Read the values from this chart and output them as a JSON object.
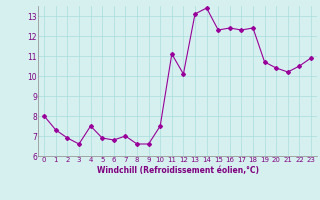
{
  "x": [
    0,
    1,
    2,
    3,
    4,
    5,
    6,
    7,
    8,
    9,
    10,
    11,
    12,
    13,
    14,
    15,
    16,
    17,
    18,
    19,
    20,
    21,
    22,
    23
  ],
  "y": [
    8.0,
    7.3,
    6.9,
    6.6,
    7.5,
    6.9,
    6.8,
    7.0,
    6.6,
    6.6,
    7.5,
    11.1,
    10.1,
    13.1,
    13.4,
    12.3,
    12.4,
    12.3,
    12.4,
    10.7,
    10.4,
    10.2,
    10.5,
    10.9
  ],
  "line_color": "#990099",
  "marker": "D",
  "marker_size": 2,
  "bg_color": "#d6f0f0",
  "grid_color": "#aadddd",
  "xlabel": "Windchill (Refroidissement éolien,°C)",
  "xlabel_color": "#800080",
  "tick_color": "#800080",
  "ylim": [
    6,
    13.5
  ],
  "yticks": [
    6,
    7,
    8,
    9,
    10,
    11,
    12,
    13
  ],
  "xlim": [
    -0.5,
    23.5
  ],
  "xticks": [
    0,
    1,
    2,
    3,
    4,
    5,
    6,
    7,
    8,
    9,
    10,
    11,
    12,
    13,
    14,
    15,
    16,
    17,
    18,
    19,
    20,
    21,
    22,
    23
  ],
  "figsize": [
    3.2,
    2.0
  ],
  "dpi": 100
}
